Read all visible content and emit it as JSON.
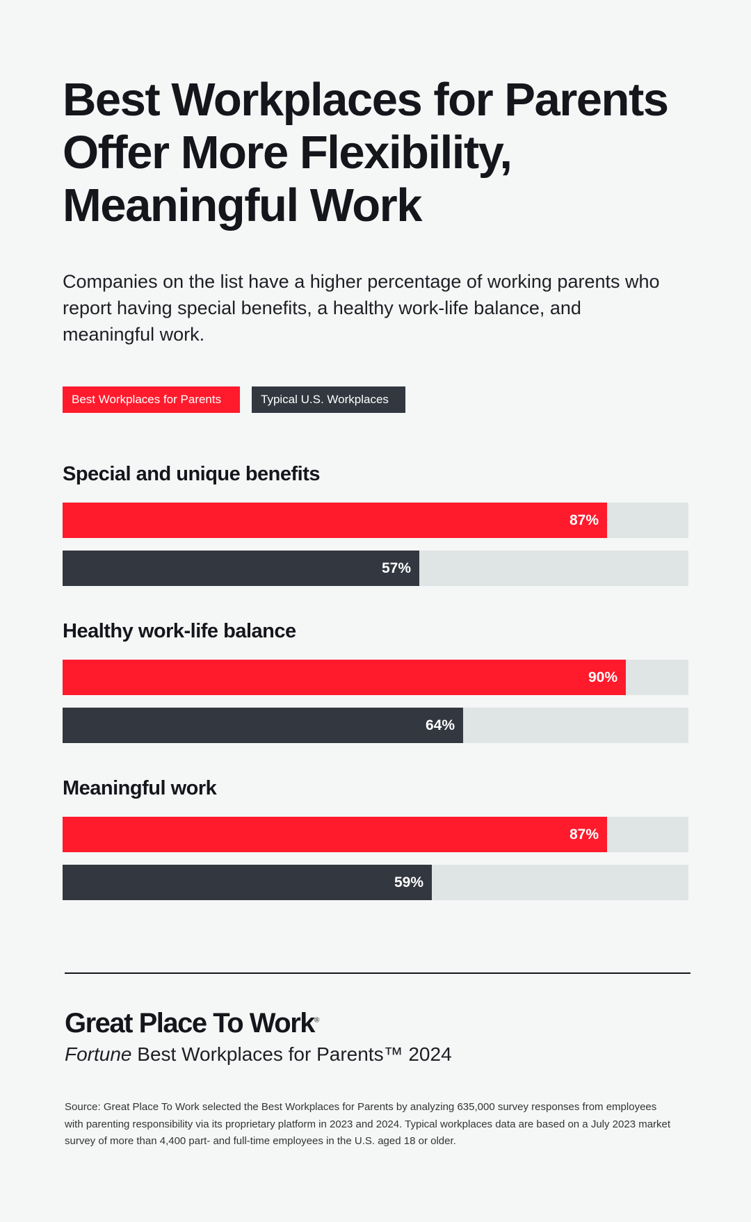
{
  "title": "Best Workplaces for Parents Offer More Flexibility, Meaningful Work",
  "subtitle": "Companies on the list have a higher percentage of working parents who report having special benefits, a healthy work-life balance, and meaningful work.",
  "colors": {
    "best": "#ff1a2c",
    "typical": "#323740",
    "track": "#dfe4e4",
    "background": "#f5f7f6"
  },
  "chart_data": {
    "type": "bar",
    "orientation": "horizontal",
    "categories": [
      "Special and unique benefits",
      "Healthy work-life balance",
      "Meaningful work"
    ],
    "series": [
      {
        "name": "Best Workplaces for Parents",
        "values": [
          87,
          90,
          87
        ],
        "labels": [
          "87%",
          "90%",
          "87%"
        ]
      },
      {
        "name": "Typical U.S. Workplaces",
        "values": [
          57,
          64,
          59
        ],
        "labels": [
          "57%",
          "64%",
          "59%"
        ]
      }
    ],
    "xlim": [
      0,
      100
    ],
    "legend": "top-left",
    "grid": false
  },
  "footer": {
    "logo": "Great Place To Work",
    "logo_mark": "®",
    "list_italic": "Fortune",
    "list_rest": " Best Workplaces for Parents™ 2024",
    "source": "Source: Great Place To Work selected the Best Workplaces for Parents by analyzing 635,000 survey responses from employees with parenting responsibility via its proprietary platform in 2023 and 2024. Typical workplaces data are based on a July 2023 market survey of more than 4,400 part- and full-time employees in the U.S. aged 18 or older."
  }
}
